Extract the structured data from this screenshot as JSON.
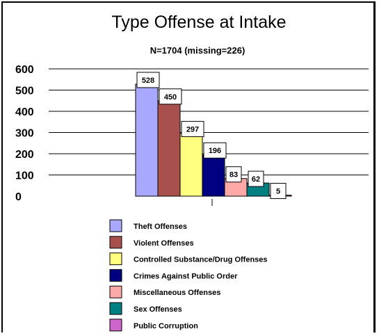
{
  "chart_data": {
    "type": "bar",
    "title": "Type Offense at Intake",
    "subtitle": "N=1704 (missing=226)",
    "xlabel": "",
    "ylabel": "",
    "ylim": [
      0,
      600
    ],
    "yticks": [
      0,
      100,
      200,
      300,
      400,
      500,
      600
    ],
    "grid": true,
    "legend_position": "bottom",
    "series": [
      {
        "name": "Theft Offenses",
        "value": 528,
        "color": "#a8a8ff"
      },
      {
        "name": "Violent Offenses",
        "value": 450,
        "color": "#a8504e"
      },
      {
        "name": "Controlled Substance/Drug Offenses",
        "value": 297,
        "color": "#ffff80"
      },
      {
        "name": "Crimes Against Public Order",
        "value": 196,
        "color": "#000080"
      },
      {
        "name": "Miscellaneous Offenses",
        "value": 83,
        "color": "#ffa8a8"
      },
      {
        "name": "Sex Offenses",
        "value": 62,
        "color": "#008080"
      },
      {
        "name": "Public Corruption",
        "value": 5,
        "color": "#cc66cc"
      }
    ]
  }
}
